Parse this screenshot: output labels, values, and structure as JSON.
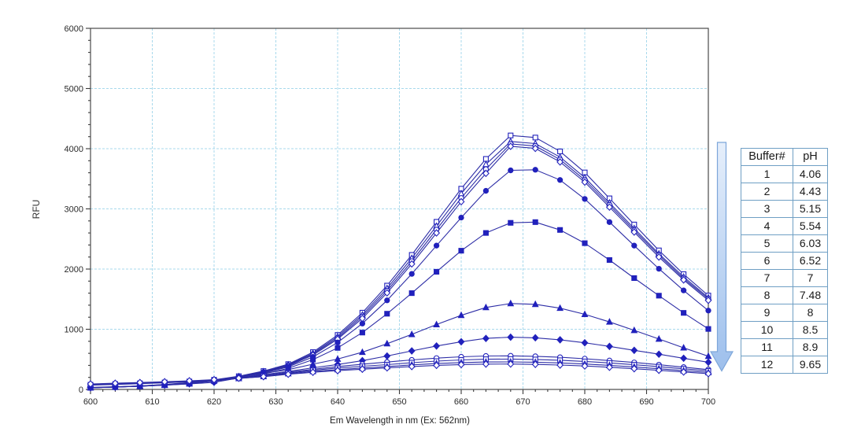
{
  "chart_data": {
    "type": "line",
    "title": "",
    "xlabel": "Em Wavelength in nm  (Ex: 562nm)",
    "ylabel": "RFU",
    "xlim": [
      600,
      700
    ],
    "ylim": [
      0,
      6000
    ],
    "x_major_ticks": [
      600,
      610,
      620,
      630,
      640,
      650,
      660,
      670,
      680,
      690,
      700
    ],
    "y_major_ticks": [
      0,
      1000,
      2000,
      3000,
      4000,
      5000,
      6000
    ],
    "x_minor_step": 2,
    "y_minor_step": 200,
    "grid": true,
    "grid_color": "#a8d9ec",
    "x": [
      600,
      604,
      608,
      612,
      616,
      620,
      624,
      628,
      632,
      636,
      640,
      644,
      648,
      652,
      656,
      660,
      664,
      668,
      672,
      676,
      680,
      684,
      688,
      692,
      696,
      700
    ],
    "series": [
      {
        "name": "Buffer 1",
        "ph": "4.06",
        "marker": "square",
        "filled": false,
        "values": [
          30,
          42,
          58,
          82,
          115,
          160,
          220,
          305,
          420,
          620,
          905,
          1275,
          1725,
          2235,
          2785,
          3335,
          3830,
          4220,
          4185,
          3955,
          3605,
          3175,
          2740,
          2310,
          1915,
          1560
        ]
      },
      {
        "name": "Buffer 2",
        "ph": "4.43",
        "marker": "triangle",
        "filled": false,
        "values": [
          29,
          41,
          57,
          80,
          112,
          156,
          214,
          296,
          410,
          600,
          880,
          1240,
          1680,
          2180,
          2715,
          3255,
          3740,
          4120,
          4085,
          3860,
          3520,
          3100,
          2675,
          2255,
          1870,
          1525
        ]
      },
      {
        "name": "Buffer 3",
        "ph": "5.15",
        "marker": "circle",
        "filled": false,
        "values": [
          28,
          40,
          55,
          78,
          109,
          151,
          208,
          288,
          400,
          585,
          855,
          1210,
          1640,
          2130,
          2655,
          3180,
          3660,
          4080,
          4045,
          3820,
          3480,
          3065,
          2645,
          2230,
          1845,
          1505
        ]
      },
      {
        "name": "Buffer 4",
        "ph": "5.54",
        "marker": "diamond",
        "filled": false,
        "values": [
          28,
          39,
          54,
          76,
          106,
          147,
          202,
          280,
          390,
          570,
          835,
          1180,
          1605,
          2085,
          2600,
          3120,
          3590,
          4040,
          4005,
          3780,
          3445,
          3030,
          2615,
          2200,
          1820,
          1480
        ]
      },
      {
        "name": "Buffer 5",
        "ph": "6.03",
        "marker": "circle",
        "filled": true,
        "values": [
          28,
          39,
          53,
          75,
          104,
          143,
          196,
          270,
          375,
          540,
          780,
          1095,
          1480,
          1920,
          2390,
          2855,
          3300,
          3640,
          3650,
          3480,
          3165,
          2780,
          2390,
          2005,
          1645,
          1310
        ]
      },
      {
        "name": "Buffer 6",
        "ph": "6.52",
        "marker": "square",
        "filled": true,
        "values": [
          27,
          38,
          52,
          72,
          99,
          136,
          185,
          255,
          352,
          495,
          690,
          945,
          1258,
          1600,
          1955,
          2305,
          2600,
          2768,
          2780,
          2650,
          2430,
          2150,
          1850,
          1558,
          1272,
          1005
        ]
      },
      {
        "name": "Buffer 7",
        "ph": "7",
        "marker": "triangle",
        "filled": true,
        "values": [
          30,
          40,
          53,
          70,
          93,
          145,
          205,
          265,
          330,
          420,
          505,
          618,
          760,
          915,
          1078,
          1232,
          1362,
          1428,
          1415,
          1350,
          1248,
          1122,
          982,
          838,
          692,
          552
        ]
      },
      {
        "name": "Buffer 8",
        "ph": "7.48",
        "marker": "diamond",
        "filled": true,
        "values": [
          34,
          44,
          56,
          72,
          92,
          118,
          190,
          245,
          300,
          360,
          415,
          478,
          555,
          640,
          722,
          792,
          848,
          868,
          858,
          825,
          775,
          715,
          650,
          585,
          518,
          452
        ]
      },
      {
        "name": "Buffer 9",
        "ph": "8",
        "marker": "circle",
        "filled": false,
        "values": [
          70,
          82,
          95,
          110,
          128,
          150,
          192,
          235,
          285,
          335,
          380,
          420,
          455,
          490,
          520,
          542,
          555,
          558,
          550,
          534,
          510,
          480,
          448,
          410,
          370,
          330
        ]
      },
      {
        "name": "Buffer 10",
        "ph": "8.5",
        "marker": "square",
        "filled": false,
        "values": [
          78,
          90,
          102,
          116,
          132,
          152,
          185,
          222,
          272,
          318,
          355,
          385,
          412,
          445,
          470,
          490,
          502,
          505,
          498,
          485,
          465,
          440,
          410,
          378,
          343,
          308
        ]
      },
      {
        "name": "Buffer 11",
        "ph": "8.9",
        "marker": "triangle",
        "filled": false,
        "values": [
          85,
          96,
          108,
          122,
          137,
          155,
          182,
          215,
          262,
          300,
          330,
          355,
          380,
          408,
          430,
          446,
          456,
          458,
          452,
          440,
          422,
          400,
          374,
          344,
          312,
          282
        ]
      },
      {
        "name": "Buffer 12",
        "ph": "9.65",
        "marker": "diamond",
        "filled": false,
        "values": [
          92,
          103,
          115,
          128,
          143,
          162,
          186,
          212,
          252,
          285,
          312,
          336,
          358,
          380,
          400,
          413,
          421,
          422,
          416,
          405,
          389,
          368,
          344,
          318,
          290,
          262
        ]
      }
    ]
  },
  "colors": {
    "line": "#2d2da6",
    "marker": "#2121bc",
    "grid": "#a8d9ec",
    "spine": "#4a4a4a",
    "tick_label": "#2a2a2a",
    "arrow_border": "#7da6da",
    "arrow_top": "#e6effb",
    "arrow_bottom": "#9dbfec",
    "table_border": "#6f9fc4"
  },
  "annotation_arrow": {
    "meaning": "increasing pH / decreasing fluorescence",
    "direction": "down"
  },
  "table": {
    "headers": [
      "Buffer#",
      "pH"
    ],
    "rows": [
      [
        "1",
        "4.06"
      ],
      [
        "2",
        "4.43"
      ],
      [
        "3",
        "5.15"
      ],
      [
        "4",
        "5.54"
      ],
      [
        "5",
        "6.03"
      ],
      [
        "6",
        "6.52"
      ],
      [
        "7",
        "7"
      ],
      [
        "8",
        "7.48"
      ],
      [
        "9",
        "8"
      ],
      [
        "10",
        "8.5"
      ],
      [
        "11",
        "8.9"
      ],
      [
        "12",
        "9.65"
      ]
    ]
  }
}
